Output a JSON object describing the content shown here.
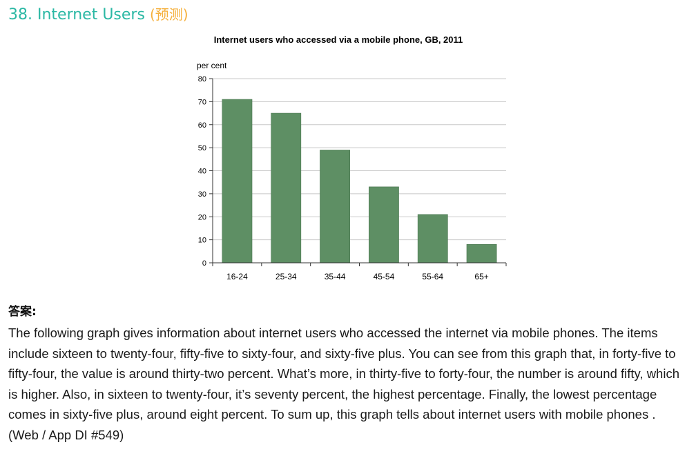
{
  "header": {
    "title": "38. Internet Users",
    "tag": "(预测)"
  },
  "chart_data": {
    "type": "bar",
    "title": "Internet users who accessed via a mobile phone, GB, 2011",
    "ylabel": "per cent",
    "xlabel": "",
    "categories": [
      "16-24",
      "25-34",
      "35-44",
      "45-54",
      "55-64",
      "65+"
    ],
    "values": [
      71,
      65,
      49,
      33,
      21,
      8
    ],
    "ylim": [
      0,
      80
    ],
    "yticks": [
      0,
      10,
      20,
      30,
      40,
      50,
      60,
      70,
      80
    ],
    "grid": true,
    "legend": "none",
    "colors": {
      "bar": "#5e8f64",
      "bar_edge": "#4a7650",
      "grid": "#c8c8c8",
      "axis": "#333333"
    }
  },
  "answer": {
    "heading": "答案:",
    "body": "The following graph gives information about internet users who accessed the internet via mobile phones. The items include sixteen to twenty-four, fifty-five to sixty-four, and sixty-five plus. You can see from this graph that, in forty-five to fifty-four, the value is around thirty-two percent. What’s more, in thirty-five to forty-four, the number is around fifty, which is higher. Also, in sixteen to twenty-four, it’s seventy percent, the highest percentage. Finally, the lowest percentage comes in sixty-five plus, around eight percent. To sum up, this graph tells about internet users with mobile phones .",
    "source": "(Web / App DI #549)"
  }
}
